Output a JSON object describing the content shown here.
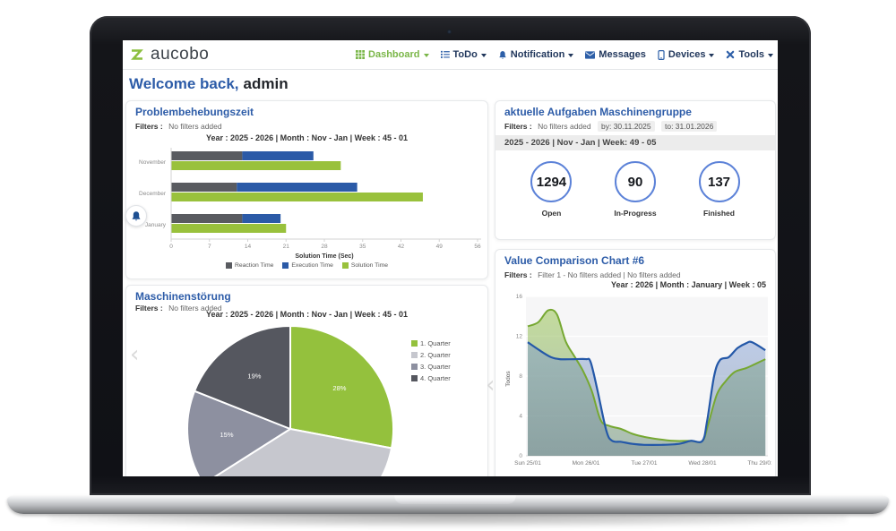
{
  "icons": {
    "chevron_left": "‹"
  },
  "colors": {
    "brand_green": "#8cbf3f",
    "heading_blue": "#2d5ca8",
    "nav_text": "#21375c",
    "nav_active": "#7ab648",
    "stat_circle_border": "#5c82d8"
  },
  "nav": {
    "logo_text": "aucobo",
    "items": [
      {
        "label": "Dashboard",
        "caret": true,
        "active": true
      },
      {
        "label": "ToDo",
        "caret": true,
        "active": false
      },
      {
        "label": "Notification",
        "caret": true,
        "active": false
      },
      {
        "label": "Messages",
        "caret": false,
        "active": false
      },
      {
        "label": "Devices",
        "caret": true,
        "active": false
      },
      {
        "label": "Tools",
        "caret": true,
        "active": false
      }
    ]
  },
  "welcome": {
    "greeting": "Welcome back,",
    "username": "admin"
  },
  "panels": {
    "problembehebungszeit": {
      "title": "Problembehebungszeit",
      "filters_label": "Filters :",
      "filters_value": "No filters added"
    },
    "aufgaben": {
      "title": "aktuelle Aufgaben Maschinengruppe",
      "filters_label": "Filters :",
      "filters_value": "No filters added",
      "filter_by": "by: 30.11.2025",
      "filter_to": "to: 31.01.2026",
      "period_strip": "2025 - 2026 | Nov - Jan | Week: 49 - 05",
      "stats": [
        {
          "value": "1294",
          "label": "Open"
        },
        {
          "value": "90",
          "label": "In-Progress"
        },
        {
          "value": "137",
          "label": "Finished"
        }
      ]
    },
    "maschinenstoerung": {
      "title": "Maschinenstörung",
      "filters_label": "Filters :",
      "filters_value": "No filters added"
    },
    "value_comparison": {
      "title": "Value Comparison Chart #6",
      "filters_label": "Filters :",
      "filters_value": "Filter 1 - No filters added  | No filters added"
    }
  },
  "chart_data": [
    {
      "id": "problembehebungszeit-bar",
      "type": "bar",
      "orientation": "horizontal",
      "title": "Year : 2025 - 2026 | Month : Nov - Jan | Week : 45 - 01",
      "categories": [
        "November",
        "December",
        "January"
      ],
      "series": [
        {
          "name": "Reaction Time",
          "color": "#595b60",
          "stack": "times",
          "values": [
            13,
            12,
            13
          ]
        },
        {
          "name": "Execution Time",
          "color": "#2b5aa7",
          "stack": "times",
          "values": [
            13,
            22,
            7
          ]
        },
        {
          "name": "Solution Time",
          "color": "#99c13c",
          "stack": "solution",
          "values": [
            31,
            46,
            21
          ]
        }
      ],
      "xlabel": "Solution Time (Sec)",
      "xlim": [
        0,
        56
      ],
      "xticks": [
        0,
        7,
        14,
        21,
        28,
        35,
        42,
        49,
        56
      ],
      "legend_position": "bottom"
    },
    {
      "id": "maschinenstoerung-pie",
      "type": "pie",
      "title": "Year : 2025 - 2026 | Month : Nov - Jan | Week : 45 - 01",
      "start_angle": "top",
      "direction": "clockwise",
      "slices": [
        {
          "label": "1. Quarter",
          "value_pct": 28,
          "color": "#94c13d",
          "label_visible": true
        },
        {
          "label": "2. Quarter",
          "value_pct": 38,
          "color": "#c6c7ce",
          "label_visible": false
        },
        {
          "label": "3. Quarter",
          "value_pct": 15,
          "color": "#8d90a0",
          "label_visible": true
        },
        {
          "label": "4. Quarter",
          "value_pct": 19,
          "color": "#55575f",
          "label_visible": true
        }
      ],
      "legend_position": "right"
    },
    {
      "id": "value-comparison-area",
      "type": "area",
      "title": "Year : 2026 | Month : January | Week : 05",
      "ylabel": "Todos",
      "ylim": [
        0,
        16
      ],
      "yticks": [
        0,
        4,
        8,
        12,
        16
      ],
      "x_categories": [
        "Sun 25/01",
        "Mon 26/01",
        "Tue 27/01",
        "Wed 28/01",
        "Thu 29/01"
      ],
      "grid": true,
      "series": [
        {
          "name": "green",
          "color": "#76a832",
          "points": [
            [
              0,
              13.0
            ],
            [
              0.18,
              13.4
            ],
            [
              0.35,
              14.6
            ],
            [
              0.5,
              14.2
            ],
            [
              0.65,
              11.5
            ],
            [
              0.8,
              10.0
            ],
            [
              0.95,
              8.5
            ],
            [
              1.1,
              6.5
            ],
            [
              1.25,
              3.6
            ],
            [
              1.4,
              3.0
            ],
            [
              1.6,
              2.7
            ],
            [
              1.8,
              2.2
            ],
            [
              2.0,
              1.9
            ],
            [
              2.2,
              1.7
            ],
            [
              2.5,
              1.5
            ],
            [
              2.8,
              1.5
            ],
            [
              3.0,
              1.5
            ],
            [
              3.1,
              3.2
            ],
            [
              3.25,
              6.2
            ],
            [
              3.4,
              7.5
            ],
            [
              3.55,
              8.4
            ],
            [
              3.75,
              8.8
            ],
            [
              3.9,
              9.2
            ],
            [
              4.08,
              9.7
            ]
          ]
        },
        {
          "name": "blue",
          "color": "#2458a8",
          "points": [
            [
              0,
              11.4
            ],
            [
              0.2,
              10.6
            ],
            [
              0.4,
              9.9
            ],
            [
              0.55,
              9.7
            ],
            [
              0.8,
              9.7
            ],
            [
              1.0,
              9.7
            ],
            [
              1.08,
              9.4
            ],
            [
              1.2,
              6.5
            ],
            [
              1.35,
              2.5
            ],
            [
              1.45,
              1.5
            ],
            [
              1.6,
              1.4
            ],
            [
              1.8,
              1.2
            ],
            [
              2.0,
              1.1
            ],
            [
              2.3,
              1.1
            ],
            [
              2.6,
              1.2
            ],
            [
              2.8,
              1.5
            ],
            [
              3.0,
              1.5
            ],
            [
              3.08,
              3.5
            ],
            [
              3.2,
              8.0
            ],
            [
              3.3,
              9.6
            ],
            [
              3.45,
              9.9
            ],
            [
              3.6,
              10.8
            ],
            [
              3.75,
              11.3
            ],
            [
              3.85,
              11.4
            ],
            [
              4.08,
              10.6
            ]
          ]
        }
      ]
    }
  ]
}
